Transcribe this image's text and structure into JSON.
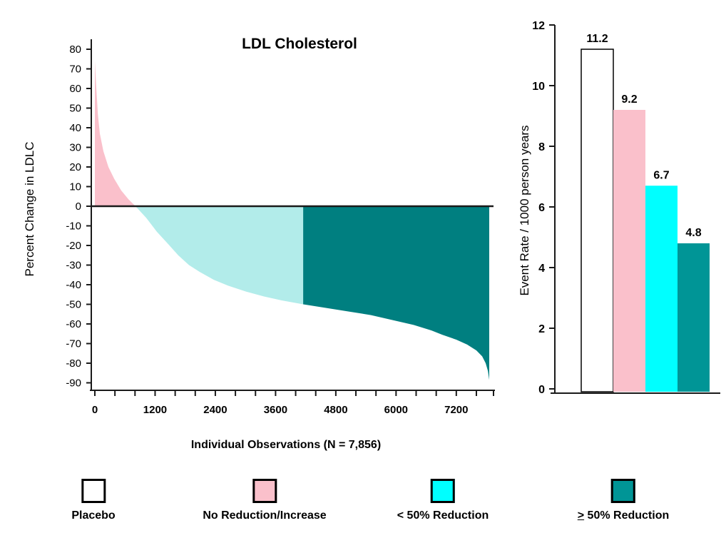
{
  "chart_data": [
    {
      "type": "area",
      "name": "ldl-waterfall",
      "title": "LDL Cholesterol",
      "xlabel": "Individual Observations (N = 7,856)",
      "ylabel": "Percent Change in LDLC",
      "n_total": 7856,
      "xlim": [
        0,
        7856
      ],
      "ylim": [
        -90,
        80
      ],
      "y_tick_step": 10,
      "x_tick_labels": [
        0,
        1200,
        2400,
        3600,
        4800,
        6000,
        7200
      ],
      "x_minor_tick_step": 400,
      "grid": false,
      "zero_line": true,
      "segments": [
        {
          "name": "No Reduction/Increase",
          "color": "#FAC0CB",
          "from": 0,
          "to": 810
        },
        {
          "name": "< 50% Reduction",
          "color": "#B2ECEA",
          "from": 810,
          "to": 4150
        },
        {
          "name": "≥ 50% Reduction",
          "color": "#007F80",
          "from": 4150,
          "to": 7856
        }
      ],
      "curve_points": [
        [
          0,
          74
        ],
        [
          30,
          60
        ],
        [
          60,
          47
        ],
        [
          100,
          37
        ],
        [
          170,
          28
        ],
        [
          270,
          20
        ],
        [
          385,
          14
        ],
        [
          525,
          8
        ],
        [
          670,
          3.5
        ],
        [
          810,
          0
        ],
        [
          1025,
          -6
        ],
        [
          1235,
          -13
        ],
        [
          1450,
          -19
        ],
        [
          1660,
          -25
        ],
        [
          1875,
          -30
        ],
        [
          2090,
          -33.5
        ],
        [
          2370,
          -37.5
        ],
        [
          2655,
          -40.5
        ],
        [
          3010,
          -43.5
        ],
        [
          3370,
          -46
        ],
        [
          3720,
          -48
        ],
        [
          4005,
          -49.3
        ],
        [
          4150,
          -50
        ],
        [
          4220,
          -50.3
        ],
        [
          4645,
          -52
        ],
        [
          5070,
          -53.7
        ],
        [
          5500,
          -55.5
        ],
        [
          5925,
          -58
        ],
        [
          6350,
          -60.5
        ],
        [
          6705,
          -63.3
        ],
        [
          6920,
          -65.5
        ],
        [
          7200,
          -68
        ],
        [
          7415,
          -70.5
        ],
        [
          7600,
          -73.5
        ],
        [
          7715,
          -76.5
        ],
        [
          7785,
          -80
        ],
        [
          7830,
          -84
        ],
        [
          7856,
          -88.5
        ]
      ]
    },
    {
      "type": "bar",
      "name": "event-rate",
      "title": "",
      "xlabel": "",
      "ylabel": "Event Rate / 1000 person years",
      "categories": [
        "Placebo",
        "No Reduction/Increase",
        "< 50% Reduction",
        "≥ 50% Reduction"
      ],
      "values": [
        11.2,
        9.2,
        6.7,
        4.8
      ],
      "data_labels": [
        "11.2",
        "9.2",
        "6.7",
        "4.8"
      ],
      "bar_colors": [
        "#FFFFFF",
        "#FAC0CB",
        "#00FFFF",
        "#009596"
      ],
      "bar_outline": [
        "#000000",
        "none",
        "none",
        "none"
      ],
      "ylim": [
        0,
        12
      ],
      "y_tick_step": 2,
      "grid": false,
      "legend_position": "none"
    }
  ],
  "legend": {
    "items": [
      {
        "label": "Placebo",
        "color": "#FFFFFF"
      },
      {
        "label": "No Reduction/Increase",
        "color": "#FAC0CB"
      },
      {
        "label": "< 50% Reduction",
        "color": "#00FFFF"
      },
      {
        "label": "≥ 50% Reduction",
        "color": "#009596"
      }
    ]
  },
  "style": {
    "axis_color": "#1a1a1a",
    "background": "#FFFFFF"
  }
}
